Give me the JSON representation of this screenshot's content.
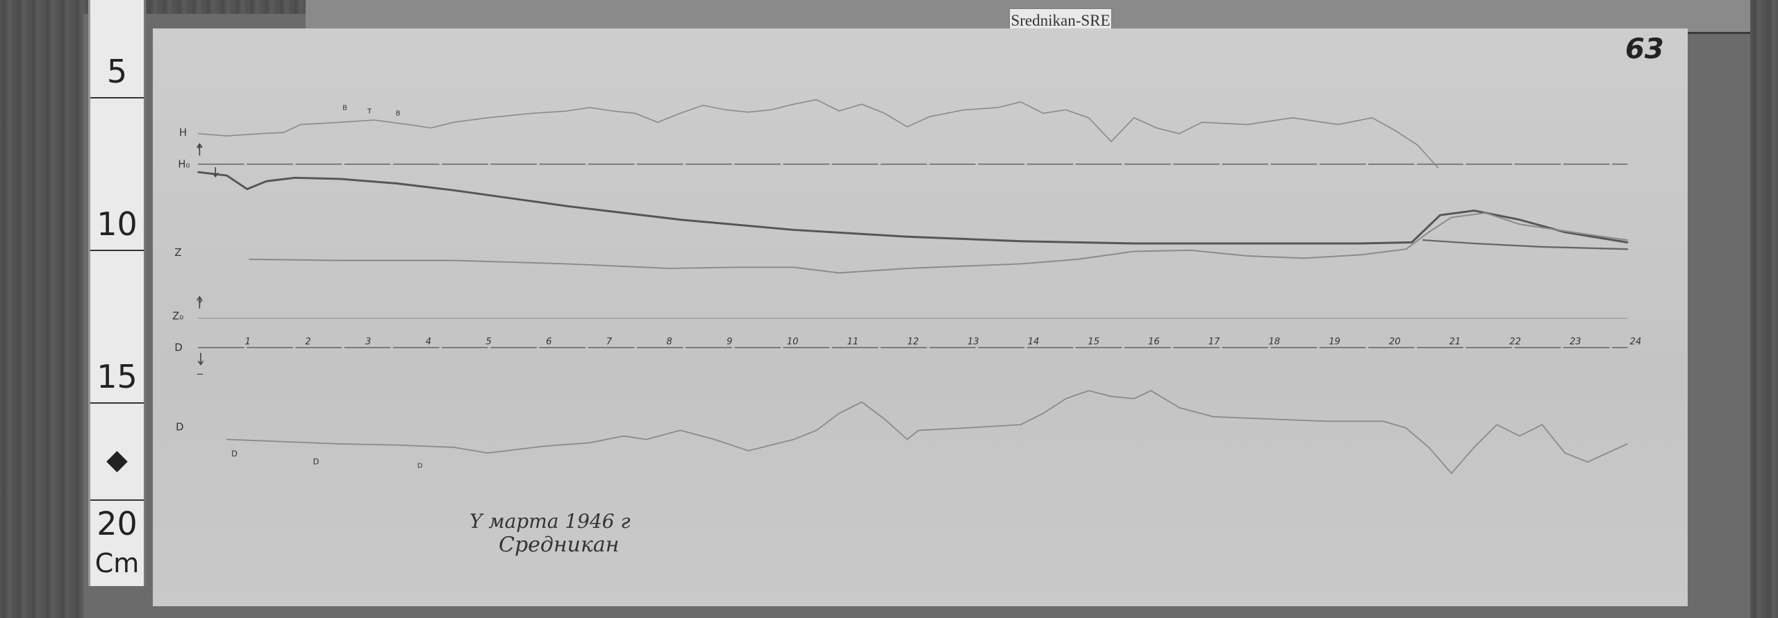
{
  "station_label": "Srednikan-SRE",
  "sheet_number": "63",
  "ruler": {
    "marks": [
      "5",
      "10",
      "15",
      "20"
    ],
    "unit": "Cm",
    "symbol": "diamond"
  },
  "channel_labels": {
    "h": "H",
    "h0": "H₀",
    "z": "Z",
    "z0": "Z₀",
    "d0": "D",
    "d": "D"
  },
  "polarity_marks": {
    "plus": "+",
    "minus": "−"
  },
  "hour_ticks": [
    "1",
    "2",
    "3",
    "4",
    "5",
    "6",
    "7",
    "8",
    "9",
    "10",
    "11",
    "12",
    "13",
    "14",
    "15",
    "16",
    "17",
    "18",
    "19",
    "20",
    "21",
    "22",
    "23",
    "24"
  ],
  "trace_annotations": {
    "b1": "B",
    "t": "T",
    "b2": "B",
    "d1": "D",
    "d2": "D",
    "d3": "D"
  },
  "handwriting": {
    "date": "Y марта 1946 г",
    "place": "Средникан"
  }
}
